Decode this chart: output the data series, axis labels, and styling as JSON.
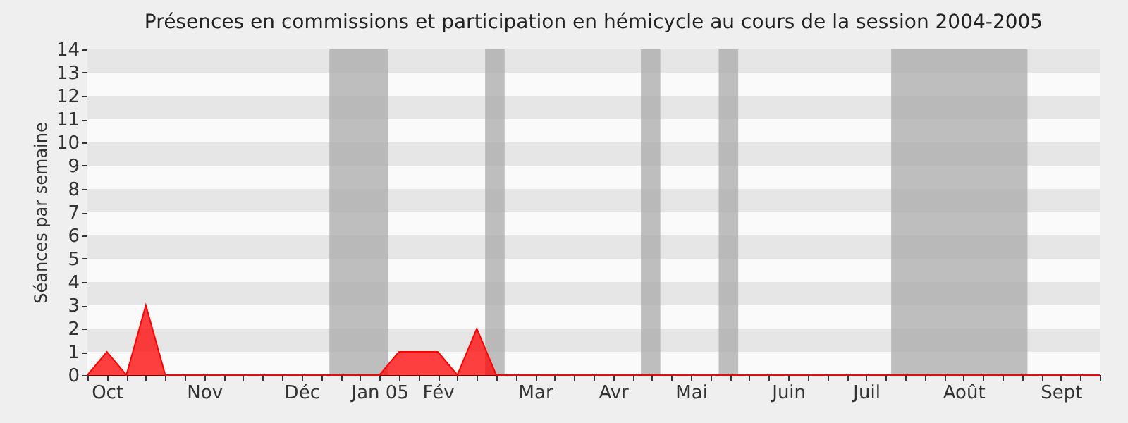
{
  "chart_data": {
    "type": "area",
    "title": "Présences en commissions et participation en hémicycle au cours de la session 2004-2005",
    "ylabel": "Séances par semaine",
    "x": [
      "2004-09-27",
      "2004-10-04",
      "2004-10-11",
      "2004-10-18",
      "2004-10-25",
      "2004-11-01",
      "2004-11-08",
      "2004-11-15",
      "2004-11-22",
      "2004-11-29",
      "2004-12-06",
      "2004-12-13",
      "2004-12-20",
      "2004-12-27",
      "2005-01-03",
      "2005-01-10",
      "2005-01-17",
      "2005-01-24",
      "2005-01-31",
      "2005-02-07",
      "2005-02-14",
      "2005-02-21",
      "2005-02-28",
      "2005-03-07",
      "2005-03-14",
      "2005-03-21",
      "2005-03-28",
      "2005-04-04",
      "2005-04-11",
      "2005-04-18",
      "2005-04-25",
      "2005-05-02",
      "2005-05-09",
      "2005-05-16",
      "2005-05-23",
      "2005-05-30",
      "2005-06-06",
      "2005-06-13",
      "2005-06-20",
      "2005-06-27",
      "2005-07-04",
      "2005-07-11",
      "2005-07-18",
      "2005-07-25",
      "2005-08-01",
      "2005-08-08",
      "2005-08-15",
      "2005-08-22",
      "2005-08-29",
      "2005-09-05",
      "2005-09-12",
      "2005-09-19",
      "2005-09-26"
    ],
    "series": [
      {
        "color": "#ff0000",
        "values": [
          0,
          1,
          0,
          3,
          0,
          0,
          0,
          0,
          0,
          0,
          0,
          0,
          0,
          0,
          0,
          0,
          1,
          1,
          1,
          0,
          2,
          0,
          0,
          0,
          0,
          0,
          0,
          0,
          0,
          0,
          0,
          0,
          0,
          0,
          0,
          0,
          0,
          0,
          0,
          0,
          0,
          0,
          0,
          0,
          0,
          0,
          0,
          0,
          0,
          0,
          0,
          0,
          0
        ]
      }
    ],
    "xlim": [
      "2004-09-27",
      "2005-09-26"
    ],
    "xticks": [
      {
        "value": "2004-09-27",
        "label": null
      },
      {
        "value": "2004-10-04",
        "label": "Oct"
      },
      {
        "value": "2004-10-11",
        "label": null
      },
      {
        "value": "2004-10-18",
        "label": null
      },
      {
        "value": "2004-10-25",
        "label": null
      },
      {
        "value": "2004-11-01",
        "label": null
      },
      {
        "value": "2004-11-08",
        "label": "Nov"
      },
      {
        "value": "2004-11-15",
        "label": null
      },
      {
        "value": "2004-11-22",
        "label": null
      },
      {
        "value": "2004-11-29",
        "label": null
      },
      {
        "value": "2004-12-06",
        "label": null
      },
      {
        "value": "2004-12-13",
        "label": "Déc"
      },
      {
        "value": "2004-12-20",
        "label": null
      },
      {
        "value": "2004-12-27",
        "label": null
      },
      {
        "value": "2005-01-03",
        "label": null
      },
      {
        "value": "2005-01-10",
        "label": "Jan 05"
      },
      {
        "value": "2005-01-17",
        "label": null
      },
      {
        "value": "2005-01-24",
        "label": null
      },
      {
        "value": "2005-01-31",
        "label": "Fév"
      },
      {
        "value": "2005-02-07",
        "label": null
      },
      {
        "value": "2005-02-14",
        "label": null
      },
      {
        "value": "2005-02-21",
        "label": null
      },
      {
        "value": "2005-02-28",
        "label": null
      },
      {
        "value": "2005-03-07",
        "label": "Mar"
      },
      {
        "value": "2005-03-14",
        "label": null
      },
      {
        "value": "2005-03-21",
        "label": null
      },
      {
        "value": "2005-03-28",
        "label": null
      },
      {
        "value": "2005-04-04",
        "label": "Avr"
      },
      {
        "value": "2005-04-11",
        "label": null
      },
      {
        "value": "2005-04-18",
        "label": null
      },
      {
        "value": "2005-04-25",
        "label": null
      },
      {
        "value": "2005-05-02",
        "label": "Mai"
      },
      {
        "value": "2005-05-09",
        "label": null
      },
      {
        "value": "2005-05-16",
        "label": null
      },
      {
        "value": "2005-05-23",
        "label": null
      },
      {
        "value": "2005-05-30",
        "label": null
      },
      {
        "value": "2005-06-06",
        "label": "Juin"
      },
      {
        "value": "2005-06-13",
        "label": null
      },
      {
        "value": "2005-06-20",
        "label": null
      },
      {
        "value": "2005-06-27",
        "label": null
      },
      {
        "value": "2005-07-04",
        "label": "Juil"
      },
      {
        "value": "2005-07-11",
        "label": null
      },
      {
        "value": "2005-07-18",
        "label": null
      },
      {
        "value": "2005-07-25",
        "label": null
      },
      {
        "value": "2005-08-01",
        "label": null
      },
      {
        "value": "2005-08-08",
        "label": "Août"
      },
      {
        "value": "2005-08-15",
        "label": null
      },
      {
        "value": "2005-08-22",
        "label": null
      },
      {
        "value": "2005-08-29",
        "label": null
      },
      {
        "value": "2005-09-05",
        "label": null
      },
      {
        "value": "2005-09-12",
        "label": "Sept"
      },
      {
        "value": "2005-09-19",
        "label": null
      },
      {
        "value": "2005-09-26",
        "label": null
      }
    ],
    "ylim": [
      0,
      14
    ],
    "yticks": [
      0,
      1,
      2,
      3,
      4,
      5,
      6,
      7,
      8,
      9,
      10,
      11,
      12,
      13,
      14
    ],
    "bands": [
      {
        "axis": "x",
        "from": "2004-12-23",
        "to": "2005-01-13",
        "color": "#aaaaaa"
      },
      {
        "axis": "x",
        "from": "2005-02-17",
        "to": "2005-02-24",
        "color": "#aaaaaa"
      },
      {
        "axis": "x",
        "from": "2005-04-14",
        "to": "2005-04-21",
        "color": "#aaaaaa"
      },
      {
        "axis": "x",
        "from": "2005-05-12",
        "to": "2005-05-19",
        "color": "#aaaaaa"
      },
      {
        "axis": "x",
        "from": "2005-07-13",
        "to": "2005-08-31",
        "color": "#aaaaaa"
      }
    ]
  }
}
